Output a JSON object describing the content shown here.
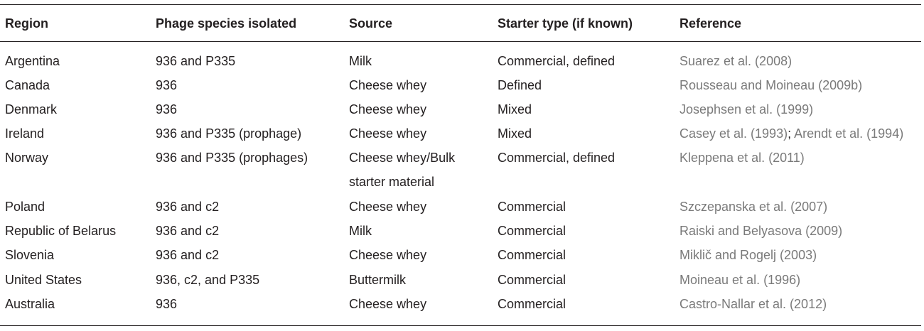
{
  "headers": {
    "region": "Region",
    "phage": "Phage species isolated",
    "source": "Source",
    "starter": "Starter type (if known)",
    "reference": "Reference"
  },
  "rows": [
    {
      "region": "Argentina",
      "phage": "936 and P335",
      "source": "Milk",
      "starter": "Commercial, defined",
      "reference": "Suarez et al. (2008)"
    },
    {
      "region": "Canada",
      "phage": "936",
      "source": "Cheese whey",
      "starter": "Defined",
      "reference": "Rousseau and Moineau (2009b)"
    },
    {
      "region": "Denmark",
      "phage": "936",
      "source": "Cheese whey",
      "starter": "Mixed",
      "reference": "Josephsen et al. (1999)"
    },
    {
      "region": "Ireland",
      "phage": "936 and P335 (prophage)",
      "source": "Cheese whey",
      "starter": "Mixed",
      "reference": "Casey et al. (1993)",
      "reference_b": "Arendt et al. (1994)",
      "reference_sep": ";"
    },
    {
      "region": "Norway",
      "phage": "936 and P335 (prophages)",
      "source": "Cheese whey/Bulk",
      "source_line2": "starter material",
      "starter": "Commercial, defined",
      "reference": "Kleppena et al. (2011)"
    },
    {
      "region": "Poland",
      "phage": "936 and c2",
      "source": "Cheese whey",
      "starter": "Commercial",
      "reference": "Szczepanska et al. (2007)"
    },
    {
      "region": "Republic of Belarus",
      "phage": "936 and c2",
      "source": "Milk",
      "starter": "Commercial",
      "reference": "Raiski and Belyasova (2009)"
    },
    {
      "region": "Slovenia",
      "phage": "936 and c2",
      "source": "Cheese whey",
      "starter": "Commercial",
      "reference": "Miklič and Rogelj (2003)"
    },
    {
      "region": "United States",
      "phage": "936, c2, and P335",
      "source": "Buttermilk",
      "starter": "Commercial",
      "reference": "Moineau et al. (1996)"
    },
    {
      "region": "Australia",
      "phage": "936",
      "source": "Cheese whey",
      "starter": "Commercial",
      "reference": "Castro-Nallar et al. (2012)"
    }
  ],
  "colors": {
    "text": "#231f20",
    "reference_link": "#7a7a7a",
    "rule": "#231f20"
  }
}
